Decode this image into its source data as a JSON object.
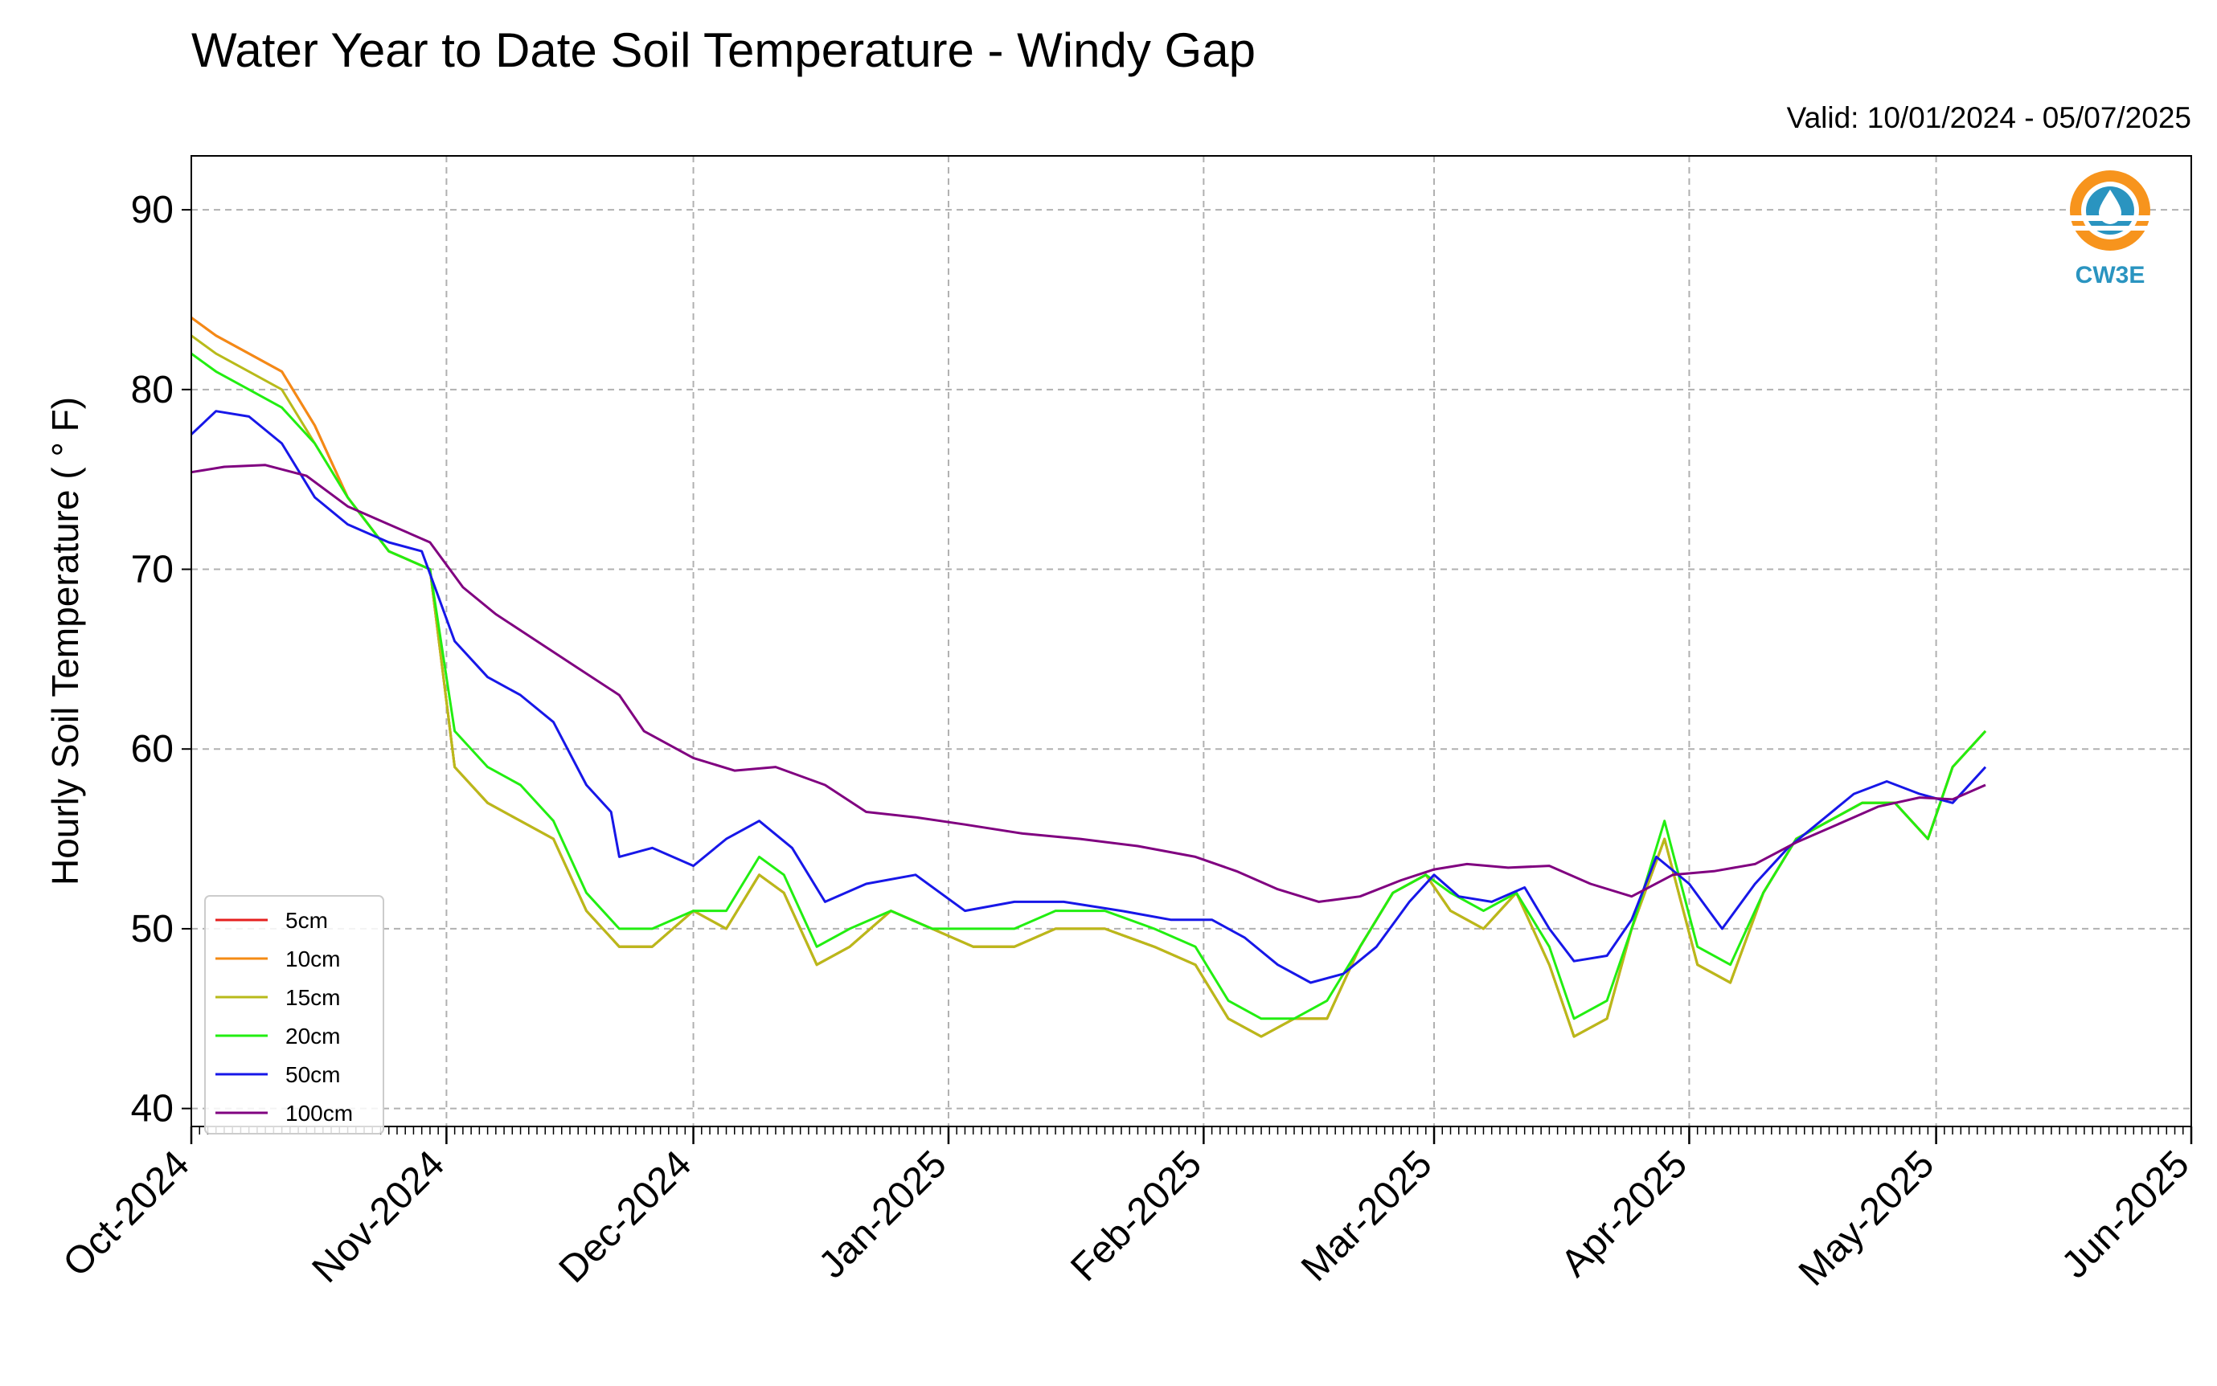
{
  "chart_data": {
    "type": "line",
    "title": "Water Year to Date Soil Temperature - Windy Gap",
    "subtitle": "Valid: 10/01/2024 - 05/07/2025",
    "xlabel": "",
    "ylabel": "Hourly Soil Temperature ( ° F)",
    "xlim": [
      "2024-10-01",
      "2025-06-01"
    ],
    "ylim": [
      39,
      93
    ],
    "yticks": [
      40,
      50,
      60,
      70,
      80,
      90
    ],
    "xticks": [
      "2024-10-01",
      "2024-11-01",
      "2024-12-01",
      "2025-01-01",
      "2025-02-01",
      "2025-03-01",
      "2025-04-01",
      "2025-05-01",
      "2025-06-01"
    ],
    "xtick_labels": [
      "Oct-2024",
      "Nov-2024",
      "Dec-2024",
      "Jan-2025",
      "Feb-2025",
      "Mar-2025",
      "Apr-2025",
      "May-2025",
      "Jun-2025"
    ],
    "grid": true,
    "legend_position": "lower-left",
    "logo_text": "CW3E",
    "series": [
      {
        "name": "5cm",
        "color": "#e6201f",
        "x": [
          "2024-10-01",
          "2024-10-04",
          "2024-10-08",
          "2024-10-12",
          "2024-10-16",
          "2024-10-20",
          "2024-10-25",
          "2024-10-30",
          "2024-11-02",
          "2024-11-06",
          "2024-11-10",
          "2024-11-14",
          "2024-11-18",
          "2024-11-22",
          "2024-11-26",
          "2024-12-01",
          "2024-12-05",
          "2024-12-09",
          "2024-12-12",
          "2024-12-16",
          "2024-12-20",
          "2024-12-25",
          "2024-12-30",
          "2025-01-04",
          "2025-01-09",
          "2025-01-14",
          "2025-01-20",
          "2025-01-26",
          "2025-01-31",
          "2025-02-04",
          "2025-02-08",
          "2025-02-12",
          "2025-02-16",
          "2025-02-20",
          "2025-02-24",
          "2025-02-28",
          "2025-03-03",
          "2025-03-07",
          "2025-03-11",
          "2025-03-15",
          "2025-03-18",
          "2025-03-22",
          "2025-03-25",
          "2025-03-29",
          "2025-04-02",
          "2025-04-06",
          "2025-04-10",
          "2025-04-14",
          "2025-04-18",
          "2025-04-22",
          "2025-04-26",
          "2025-04-30",
          "2025-05-03",
          "2025-05-07"
        ],
        "values": [
          84,
          83,
          82,
          81,
          78,
          74,
          71,
          70,
          59,
          57,
          56,
          55,
          51,
          49,
          49,
          51,
          50,
          53,
          52,
          48,
          49,
          51,
          50,
          49,
          49,
          50,
          50,
          49,
          48,
          45,
          44,
          45,
          45,
          49,
          52,
          53,
          51,
          50,
          52,
          48,
          44,
          45,
          50,
          55,
          48,
          47,
          52,
          55,
          56,
          57,
          57,
          55,
          59,
          61
        ]
      },
      {
        "name": "10cm",
        "color": "#f48b14",
        "x": [
          "2024-10-01",
          "2024-10-04",
          "2024-10-08",
          "2024-10-12",
          "2024-10-16",
          "2024-10-20",
          "2024-10-25",
          "2024-10-30",
          "2024-11-02",
          "2024-11-06",
          "2024-11-10",
          "2024-11-14",
          "2024-11-18",
          "2024-11-22",
          "2024-11-26",
          "2024-12-01",
          "2024-12-05",
          "2024-12-09",
          "2024-12-12",
          "2024-12-16",
          "2024-12-20",
          "2024-12-25",
          "2024-12-30",
          "2025-01-04",
          "2025-01-09",
          "2025-01-14",
          "2025-01-20",
          "2025-01-26",
          "2025-01-31",
          "2025-02-04",
          "2025-02-08",
          "2025-02-12",
          "2025-02-16",
          "2025-02-20",
          "2025-02-24",
          "2025-02-28",
          "2025-03-03",
          "2025-03-07",
          "2025-03-11",
          "2025-03-15",
          "2025-03-18",
          "2025-03-22",
          "2025-03-25",
          "2025-03-29",
          "2025-04-02",
          "2025-04-06",
          "2025-04-10",
          "2025-04-14",
          "2025-04-18",
          "2025-04-22",
          "2025-04-26",
          "2025-04-30",
          "2025-05-03",
          "2025-05-07"
        ],
        "values": [
          84,
          83,
          82,
          81,
          78,
          74,
          71,
          70,
          59,
          57,
          56,
          55,
          51,
          49,
          49,
          51,
          50,
          53,
          52,
          48,
          49,
          51,
          50,
          49,
          49,
          50,
          50,
          49,
          48,
          45,
          44,
          45,
          45,
          49,
          52,
          53,
          51,
          50,
          52,
          48,
          44,
          45,
          50,
          55,
          48,
          47,
          52,
          55,
          56,
          57,
          57,
          55,
          59,
          61
        ]
      },
      {
        "name": "15cm",
        "color": "#b8ba1a",
        "x": [
          "2024-10-01",
          "2024-10-04",
          "2024-10-08",
          "2024-10-12",
          "2024-10-16",
          "2024-10-20",
          "2024-10-25",
          "2024-10-30",
          "2024-11-02",
          "2024-11-06",
          "2024-11-10",
          "2024-11-14",
          "2024-11-18",
          "2024-11-22",
          "2024-11-26",
          "2024-12-01",
          "2024-12-05",
          "2024-12-09",
          "2024-12-12",
          "2024-12-16",
          "2024-12-20",
          "2024-12-25",
          "2024-12-30",
          "2025-01-04",
          "2025-01-09",
          "2025-01-14",
          "2025-01-20",
          "2025-01-26",
          "2025-01-31",
          "2025-02-04",
          "2025-02-08",
          "2025-02-12",
          "2025-02-16",
          "2025-02-20",
          "2025-02-24",
          "2025-02-28",
          "2025-03-03",
          "2025-03-07",
          "2025-03-11",
          "2025-03-15",
          "2025-03-18",
          "2025-03-22",
          "2025-03-25",
          "2025-03-29",
          "2025-04-02",
          "2025-04-06",
          "2025-04-10",
          "2025-04-14",
          "2025-04-18",
          "2025-04-22",
          "2025-04-26",
          "2025-04-30",
          "2025-05-03",
          "2025-05-07"
        ],
        "values": [
          83,
          82,
          81,
          80,
          77,
          74,
          71,
          70,
          59,
          57,
          56,
          55,
          51,
          49,
          49,
          51,
          50,
          53,
          52,
          48,
          49,
          51,
          50,
          49,
          49,
          50,
          50,
          49,
          48,
          45,
          44,
          45,
          45,
          49,
          52,
          53,
          51,
          50,
          52,
          48,
          44,
          45,
          50,
          55,
          48,
          47,
          52,
          55,
          56,
          57,
          57,
          55,
          59,
          61
        ]
      },
      {
        "name": "20cm",
        "color": "#22ee11",
        "x": [
          "2024-10-01",
          "2024-10-04",
          "2024-10-08",
          "2024-10-12",
          "2024-10-16",
          "2024-10-20",
          "2024-10-25",
          "2024-10-30",
          "2024-11-02",
          "2024-11-06",
          "2024-11-10",
          "2024-11-14",
          "2024-11-18",
          "2024-11-22",
          "2024-11-26",
          "2024-12-01",
          "2024-12-05",
          "2024-12-09",
          "2024-12-12",
          "2024-12-16",
          "2024-12-20",
          "2024-12-25",
          "2024-12-30",
          "2025-01-04",
          "2025-01-09",
          "2025-01-14",
          "2025-01-20",
          "2025-01-26",
          "2025-01-31",
          "2025-02-04",
          "2025-02-08",
          "2025-02-12",
          "2025-02-16",
          "2025-02-20",
          "2025-02-24",
          "2025-02-28",
          "2025-03-03",
          "2025-03-07",
          "2025-03-11",
          "2025-03-15",
          "2025-03-18",
          "2025-03-22",
          "2025-03-25",
          "2025-03-29",
          "2025-04-02",
          "2025-04-06",
          "2025-04-10",
          "2025-04-14",
          "2025-04-18",
          "2025-04-22",
          "2025-04-26",
          "2025-04-30",
          "2025-05-03",
          "2025-05-07"
        ],
        "values": [
          82,
          81,
          80,
          79,
          77,
          74,
          71,
          70,
          61,
          59,
          58,
          56,
          52,
          50,
          50,
          51,
          51,
          54,
          53,
          49,
          50,
          51,
          50,
          50,
          50,
          51,
          51,
          50,
          49,
          46,
          45,
          45,
          46,
          49,
          52,
          53,
          52,
          51,
          52,
          49,
          45,
          46,
          50,
          56,
          49,
          48,
          52,
          55,
          56,
          57,
          57,
          55,
          59,
          61
        ]
      },
      {
        "name": "50cm",
        "color": "#1717e8",
        "x": [
          "2024-10-01",
          "2024-10-04",
          "2024-10-08",
          "2024-10-12",
          "2024-10-16",
          "2024-10-20",
          "2024-10-25",
          "2024-10-29",
          "2024-11-02",
          "2024-11-06",
          "2024-11-10",
          "2024-11-14",
          "2024-11-18",
          "2024-11-21",
          "2024-11-22",
          "2024-11-26",
          "2024-12-01",
          "2024-12-05",
          "2024-12-09",
          "2024-12-13",
          "2024-12-17",
          "2024-12-22",
          "2024-12-28",
          "2025-01-03",
          "2025-01-09",
          "2025-01-15",
          "2025-01-22",
          "2025-01-28",
          "2025-02-02",
          "2025-02-06",
          "2025-02-10",
          "2025-02-14",
          "2025-02-18",
          "2025-02-22",
          "2025-02-26",
          "2025-03-01",
          "2025-03-04",
          "2025-03-08",
          "2025-03-12",
          "2025-03-15",
          "2025-03-18",
          "2025-03-22",
          "2025-03-25",
          "2025-03-28",
          "2025-04-01",
          "2025-04-05",
          "2025-04-09",
          "2025-04-13",
          "2025-04-17",
          "2025-04-21",
          "2025-04-25",
          "2025-04-29",
          "2025-05-03",
          "2025-05-07"
        ],
        "values": [
          77.5,
          78.8,
          78.5,
          77.0,
          74.0,
          72.5,
          71.5,
          71.0,
          66.0,
          64.0,
          63.0,
          61.5,
          58.0,
          56.5,
          54.0,
          54.5,
          53.5,
          55.0,
          56.0,
          54.5,
          51.5,
          52.5,
          53.0,
          51.0,
          51.5,
          51.5,
          51.0,
          50.5,
          50.5,
          49.5,
          48.0,
          47.0,
          47.5,
          49.0,
          51.5,
          53.0,
          51.8,
          51.5,
          52.3,
          50.0,
          48.2,
          48.5,
          50.5,
          54.0,
          52.5,
          50.0,
          52.5,
          54.5,
          56.0,
          57.5,
          58.2,
          57.5,
          57.0,
          59.0
        ]
      },
      {
        "name": "100cm",
        "color": "#800080",
        "x": [
          "2024-10-01",
          "2024-10-05",
          "2024-10-10",
          "2024-10-15",
          "2024-10-20",
          "2024-10-25",
          "2024-10-30",
          "2024-11-03",
          "2024-11-07",
          "2024-11-12",
          "2024-11-17",
          "2024-11-22",
          "2024-11-25",
          "2024-12-01",
          "2024-12-06",
          "2024-12-11",
          "2024-12-17",
          "2024-12-22",
          "2024-12-28",
          "2025-01-03",
          "2025-01-10",
          "2025-01-17",
          "2025-01-24",
          "2025-01-31",
          "2025-02-05",
          "2025-02-10",
          "2025-02-15",
          "2025-02-20",
          "2025-02-25",
          "2025-03-01",
          "2025-03-05",
          "2025-03-10",
          "2025-03-15",
          "2025-03-20",
          "2025-03-25",
          "2025-03-30",
          "2025-04-04",
          "2025-04-09",
          "2025-04-14",
          "2025-04-19",
          "2025-04-24",
          "2025-04-29",
          "2025-05-03",
          "2025-05-07"
        ],
        "values": [
          75.4,
          75.7,
          75.8,
          75.2,
          73.5,
          72.5,
          71.5,
          69.0,
          67.5,
          66.0,
          64.5,
          63.0,
          61.0,
          59.5,
          58.8,
          59.0,
          58.0,
          56.5,
          56.2,
          55.8,
          55.3,
          55.0,
          54.6,
          54.0,
          53.2,
          52.2,
          51.5,
          51.8,
          52.7,
          53.3,
          53.6,
          53.4,
          53.5,
          52.5,
          51.8,
          53.0,
          53.2,
          53.6,
          54.8,
          55.8,
          56.8,
          57.3,
          57.2,
          58.0
        ]
      }
    ]
  }
}
